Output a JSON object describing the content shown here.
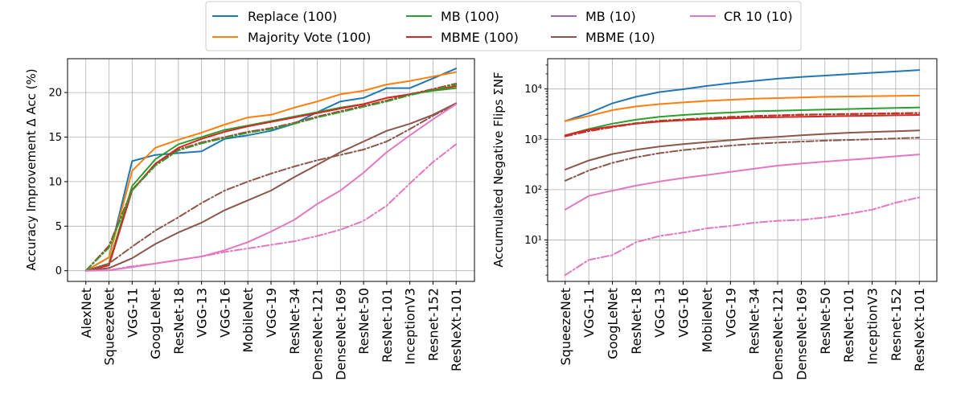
{
  "legend": {
    "entries": [
      {
        "label": "Replace (100)",
        "color": "#1f77b4"
      },
      {
        "label": "Majority Vote (100)",
        "color": "#ff7f0e"
      },
      {
        "label": "MB (100)",
        "color": "#2ca02c"
      },
      {
        "label": "MBME (100)",
        "color": "#d62728"
      },
      {
        "label": "MB (10)",
        "color": "#9467bd"
      },
      {
        "label": "MBME (10)",
        "color": "#8c564b"
      },
      {
        "label": "CR 10 (10)",
        "color": "#e377c2"
      }
    ]
  },
  "chart_data": [
    {
      "type": "line",
      "title": "",
      "xlabel": "",
      "ylabel": "Accuracy Improvement Δ Acc (%)",
      "categories": [
        "AlexNet",
        "SqueezeNet",
        "VGG-11",
        "GoogLeNet",
        "ResNet-18",
        "VGG-13",
        "VGG-16",
        "MobileNet",
        "VGG-19",
        "ResNet-34",
        "DenseNet-121",
        "DenseNet-169",
        "ResNet-50",
        "ResNet-101",
        "InceptionV3",
        "Resnet-152",
        "ResNeXt-101"
      ],
      "yscale": "linear",
      "ylim": [
        -1.2,
        23.8
      ],
      "yticks": [
        0,
        5,
        10,
        15,
        20
      ],
      "ytick_labels": [
        "0",
        "5",
        "10",
        "15",
        "20"
      ],
      "grid": true,
      "series": [
        {
          "name": "Replace (100)",
          "color": "#1f77b4",
          "style": "solid",
          "values": [
            0,
            1.5,
            12.3,
            13.0,
            13.2,
            13.4,
            14.8,
            15.2,
            15.7,
            16.5,
            17.8,
            19.0,
            19.4,
            20.5,
            20.5,
            21.6,
            22.7
          ]
        },
        {
          "name": "Majority Vote (100)",
          "color": "#ff7f0e",
          "style": "solid",
          "values": [
            0,
            1.5,
            11.2,
            13.8,
            14.7,
            15.5,
            16.4,
            17.2,
            17.5,
            18.3,
            19.0,
            19.8,
            20.2,
            20.9,
            21.3,
            21.8,
            22.3
          ]
        },
        {
          "name": "MB (100)",
          "color": "#2ca02c",
          "style": "solid",
          "values": [
            0,
            0.8,
            9.5,
            12.5,
            14.2,
            15.0,
            15.8,
            16.3,
            16.8,
            17.3,
            17.8,
            18.3,
            18.7,
            19.4,
            19.8,
            20.2,
            20.5
          ]
        },
        {
          "name": "MBME (100)",
          "color": "#d62728",
          "style": "solid",
          "values": [
            0,
            0.6,
            9.0,
            12.0,
            13.8,
            14.8,
            15.6,
            16.2,
            16.7,
            17.2,
            17.7,
            18.2,
            18.7,
            19.4,
            19.8,
            20.3,
            20.7
          ]
        },
        {
          "name": "MBME (100) dashed",
          "color": "#d62728",
          "style": "dashdot",
          "values": [
            0,
            2.8,
            9.1,
            11.9,
            13.6,
            14.4,
            15.0,
            15.6,
            16.0,
            16.6,
            17.3,
            17.9,
            18.5,
            19.1,
            19.8,
            20.4,
            21.0
          ]
        },
        {
          "name": "MB (100) dashed",
          "color": "#2ca02c",
          "style": "dashdot",
          "values": [
            0,
            2.6,
            9.0,
            11.8,
            13.5,
            14.3,
            14.9,
            15.5,
            15.9,
            16.5,
            17.2,
            17.8,
            18.4,
            19.0,
            19.7,
            20.3,
            20.9
          ]
        },
        {
          "name": "MBME (10)",
          "color": "#8c564b",
          "style": "solid",
          "values": [
            0,
            0.3,
            1.4,
            3.0,
            4.3,
            5.4,
            6.8,
            7.9,
            9.0,
            10.5,
            11.9,
            13.3,
            14.5,
            15.7,
            16.5,
            17.5,
            18.8
          ]
        },
        {
          "name": "MBME (10) dashed",
          "color": "#8c564b",
          "style": "dashdot",
          "values": [
            0,
            0.8,
            2.7,
            4.5,
            6.0,
            7.6,
            9.0,
            10.0,
            10.9,
            11.7,
            12.4,
            13.0,
            13.6,
            14.5,
            15.9,
            17.4,
            18.7
          ]
        },
        {
          "name": "CR 10 (10)",
          "color": "#e377c2",
          "style": "solid",
          "values": [
            0,
            0.05,
            0.4,
            0.8,
            1.2,
            1.6,
            2.3,
            3.2,
            4.4,
            5.7,
            7.5,
            9.0,
            11.0,
            13.3,
            15.2,
            17.0,
            18.7
          ]
        },
        {
          "name": "CR 10 (10) dashed",
          "color": "#e377c2",
          "style": "dashdot",
          "values": [
            0,
            0.05,
            0.5,
            0.8,
            1.2,
            1.6,
            2.1,
            2.5,
            2.9,
            3.3,
            3.9,
            4.6,
            5.6,
            7.3,
            9.8,
            12.2,
            14.2
          ]
        }
      ]
    },
    {
      "type": "line",
      "title": "",
      "xlabel": "",
      "ylabel": "Accumulated Negative Flips ΣNF",
      "categories": [
        "SqueezeNet",
        "VGG-11",
        "GoogLeNet",
        "ResNet-18",
        "VGG-13",
        "VGG-16",
        "MobileNet",
        "VGG-19",
        "ResNet-34",
        "DenseNet-121",
        "DenseNet-169",
        "ResNet-50",
        "ResNet-101",
        "InceptionV3",
        "Resnet-152",
        "ResNeXt-101"
      ],
      "yscale": "log",
      "ylim": [
        1.5,
        40000
      ],
      "yticks": [
        10,
        100,
        1000,
        10000
      ],
      "ytick_labels": [
        "10¹",
        "10²",
        "10³",
        "10⁴"
      ],
      "grid": true,
      "series": [
        {
          "name": "Replace (100)",
          "color": "#1f77b4",
          "style": "solid",
          "values": [
            2300,
            3300,
            5200,
            7000,
            8700,
            9900,
            11500,
            13000,
            14500,
            16000,
            17300,
            18500,
            19700,
            21000,
            22300,
            23800
          ]
        },
        {
          "name": "Majority Vote (100)",
          "color": "#ff7f0e",
          "style": "solid",
          "values": [
            2300,
            2900,
            3800,
            4500,
            5000,
            5400,
            5800,
            6100,
            6400,
            6600,
            6800,
            7000,
            7100,
            7200,
            7300,
            7400
          ]
        },
        {
          "name": "MB (100)",
          "color": "#2ca02c",
          "style": "solid",
          "values": [
            1200,
            1600,
            2050,
            2450,
            2800,
            3050,
            3250,
            3400,
            3600,
            3700,
            3800,
            3900,
            4000,
            4100,
            4200,
            4300
          ]
        },
        {
          "name": "MB (100) dashed",
          "color": "#2ca02c",
          "style": "dashdot",
          "values": [
            1150,
            1500,
            1800,
            2100,
            2350,
            2500,
            2650,
            2800,
            2900,
            2980,
            3050,
            3100,
            3150,
            3200,
            3250,
            3300
          ]
        },
        {
          "name": "MBME (100)",
          "color": "#d62728",
          "style": "solid",
          "values": [
            1200,
            1550,
            1800,
            2050,
            2250,
            2400,
            2500,
            2600,
            2700,
            2750,
            2800,
            2850,
            2900,
            2950,
            3000,
            3050
          ]
        },
        {
          "name": "MBME (100) dashed",
          "color": "#d62728",
          "style": "dashdot",
          "values": [
            1150,
            1450,
            1750,
            2050,
            2300,
            2450,
            2600,
            2750,
            2900,
            3000,
            3100,
            3150,
            3200,
            3250,
            3300,
            3350
          ]
        },
        {
          "name": "MBME (10)",
          "color": "#8c564b",
          "style": "solid",
          "values": [
            250,
            380,
            510,
            620,
            720,
            800,
            880,
            960,
            1050,
            1120,
            1200,
            1280,
            1350,
            1400,
            1450,
            1500
          ]
        },
        {
          "name": "MBME (10) dashed",
          "color": "#8c564b",
          "style": "dashdot",
          "values": [
            150,
            240,
            340,
            440,
            530,
            610,
            680,
            750,
            810,
            860,
            900,
            940,
            970,
            1000,
            1040,
            1080
          ]
        },
        {
          "name": "CR 10 (10)",
          "color": "#e377c2",
          "style": "solid",
          "values": [
            40,
            75,
            95,
            120,
            145,
            170,
            195,
            225,
            260,
            300,
            330,
            360,
            390,
            420,
            460,
            500
          ]
        },
        {
          "name": "CR 10 (10) dashed",
          "color": "#e377c2",
          "style": "dashdot",
          "values": [
            2,
            4,
            5,
            9,
            12,
            14,
            17,
            19,
            22,
            24,
            25,
            28,
            33,
            40,
            55,
            70
          ]
        }
      ]
    }
  ]
}
